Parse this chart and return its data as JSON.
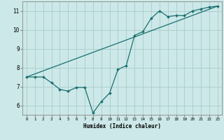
{
  "xlabel": "Humidex (Indice chaleur)",
  "bg_color": "#cce8e8",
  "grid_color": "#aacccc",
  "line_color": "#1a7070",
  "xlim": [
    -0.5,
    23.5
  ],
  "ylim": [
    5.5,
    11.5
  ],
  "xticks": [
    0,
    1,
    2,
    3,
    4,
    5,
    6,
    7,
    8,
    9,
    10,
    11,
    12,
    13,
    14,
    15,
    16,
    17,
    18,
    19,
    20,
    21,
    22,
    23
  ],
  "yticks": [
    6,
    7,
    8,
    9,
    10,
    11
  ],
  "line1_x": [
    0,
    1,
    2,
    3,
    4,
    5,
    6,
    7,
    8,
    9,
    10,
    11,
    12,
    13,
    14,
    15,
    16,
    17,
    18,
    19,
    20,
    21,
    22,
    23
  ],
  "line1_y": [
    7.5,
    7.5,
    7.5,
    7.2,
    6.85,
    6.75,
    6.95,
    6.95,
    5.6,
    6.2,
    6.65,
    7.9,
    8.1,
    9.7,
    9.9,
    10.6,
    11.0,
    10.7,
    10.75,
    10.75,
    11.0,
    11.1,
    11.2,
    11.25
  ],
  "line2_x": [
    0,
    23
  ],
  "line2_y": [
    7.5,
    11.25
  ]
}
